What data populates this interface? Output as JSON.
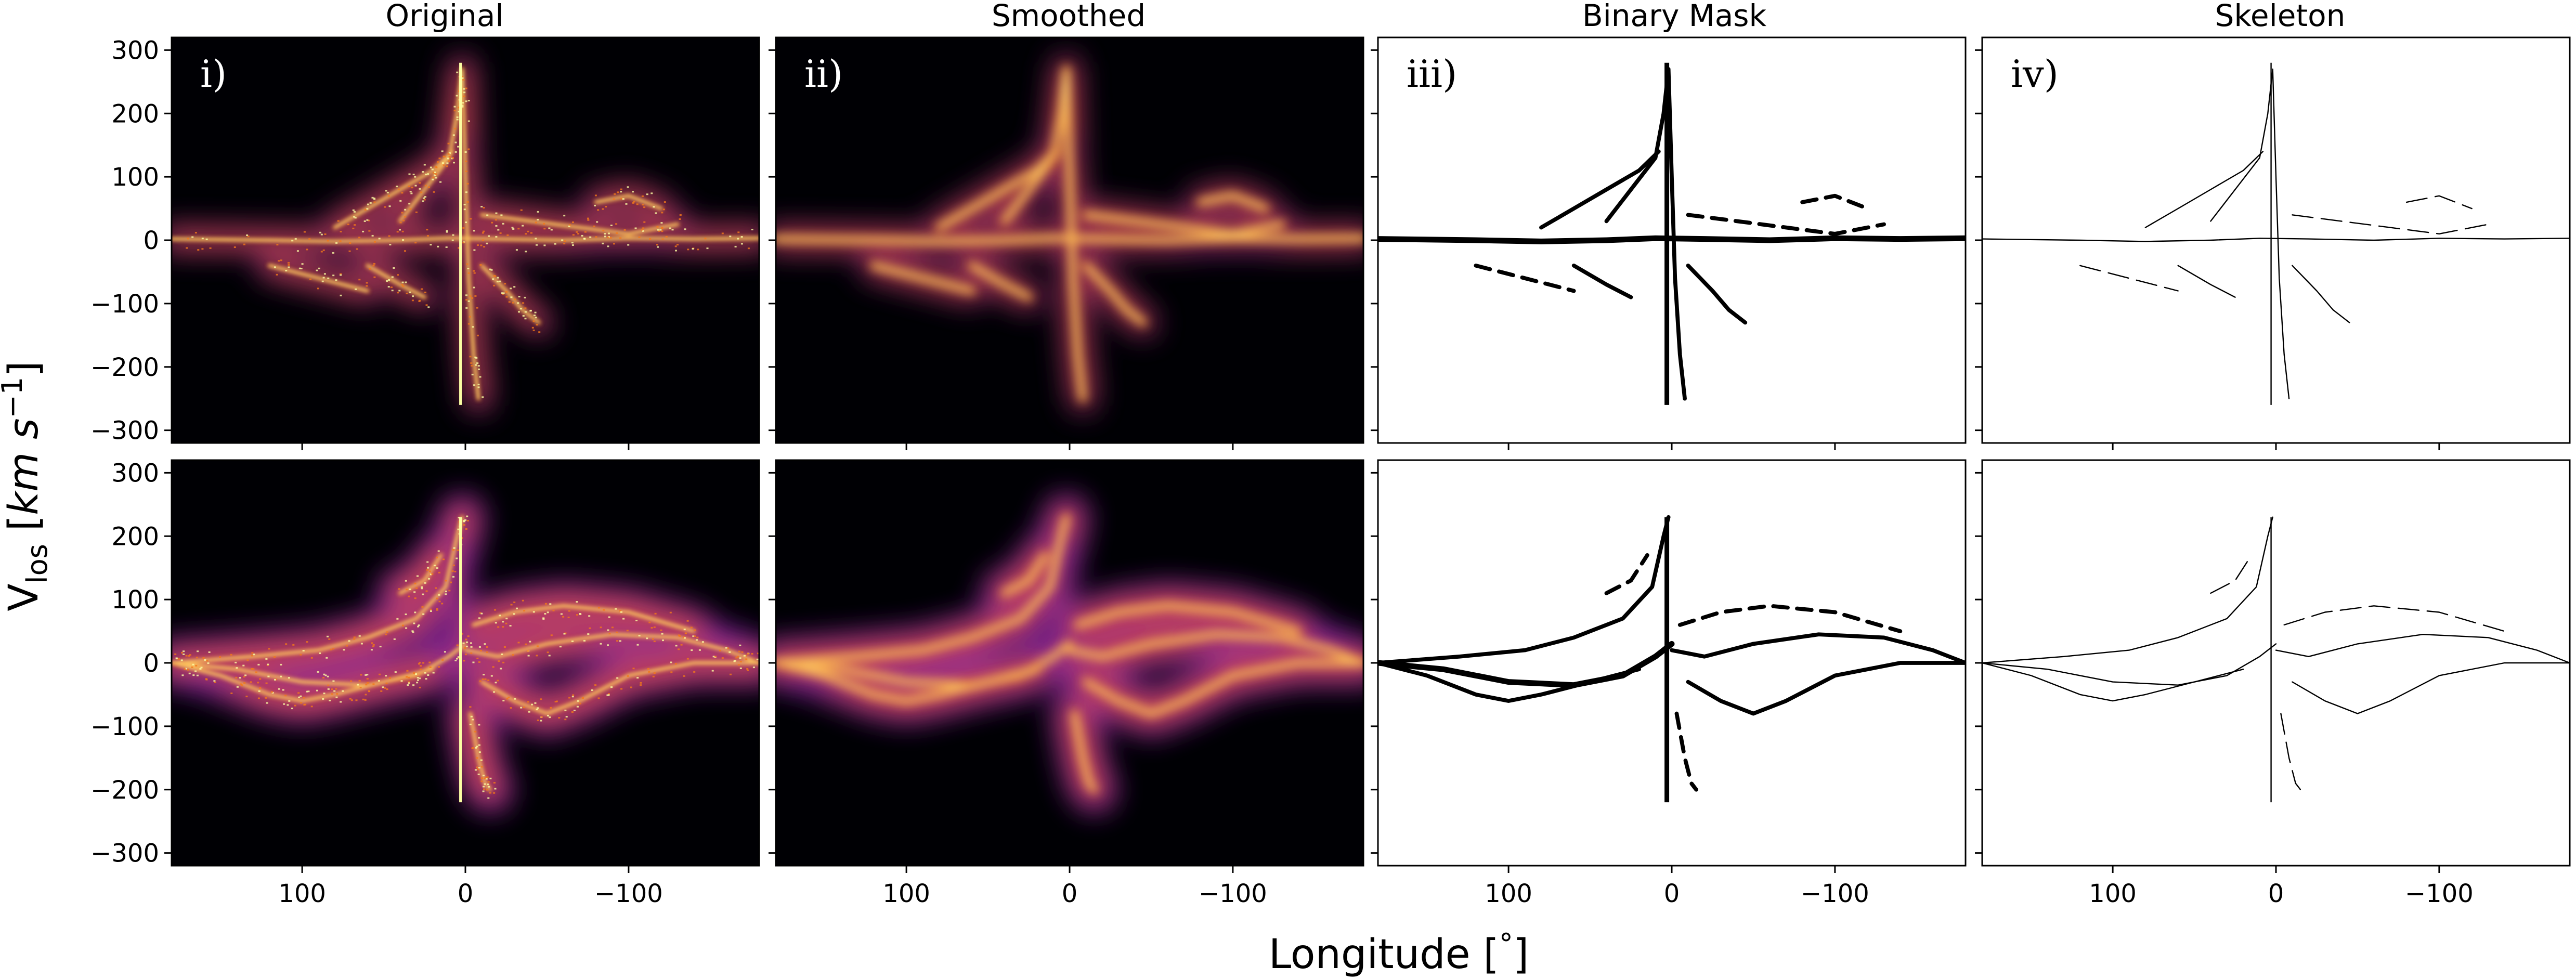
{
  "chart_data": {
    "type": "heatmap",
    "ylabel_main": "V",
    "ylabel_sub": "los",
    "ylabel_units_open": " [",
    "ylabel_unit_km": "km s",
    "ylabel_unit_exp": "−1",
    "ylabel_units_close": "]",
    "xlabel_main": "Longitude [",
    "xlabel_degree": "°",
    "xlabel_close": "]",
    "x_range": [
      180,
      -180
    ],
    "y_range": [
      -320,
      320
    ],
    "x_ticks": [
      100,
      0,
      -100
    ],
    "x_tick_labels": [
      "100",
      "0",
      "−100"
    ],
    "y_ticks": [
      300,
      200,
      100,
      0,
      -100,
      -200,
      -300
    ],
    "y_tick_labels": [
      "300",
      "200",
      "100",
      "0",
      "−100",
      "−200",
      "−300"
    ],
    "columns": [
      {
        "title": "Original",
        "label": "i)",
        "style": "heat-sharp"
      },
      {
        "title": "Smoothed",
        "label": "ii)",
        "style": "heat-smooth"
      },
      {
        "title": "Binary Mask",
        "label": "iii)",
        "style": "mask"
      },
      {
        "title": "Skeleton",
        "label": "iv)",
        "style": "skeleton"
      }
    ],
    "rows": [
      {
        "ridges": [
          [
            [
              180,
              2
            ],
            [
              120,
              0
            ],
            [
              80,
              -2
            ],
            [
              40,
              0
            ],
            [
              10,
              3
            ],
            [
              -20,
              2
            ],
            [
              -60,
              0
            ],
            [
              -100,
              3
            ],
            [
              -140,
              2
            ],
            [
              -180,
              3
            ]
          ],
          [
            [
              40,
              30
            ],
            [
              25,
              80
            ],
            [
              10,
              130
            ],
            [
              5,
              200
            ],
            [
              2,
              270
            ],
            [
              0,
              100
            ],
            [
              -2,
              -60
            ],
            [
              -5,
              -180
            ],
            [
              -8,
              -250
            ]
          ],
          [
            [
              80,
              20
            ],
            [
              60,
              50
            ],
            [
              40,
              80
            ],
            [
              20,
              110
            ],
            [
              8,
              140
            ]
          ],
          [
            [
              60,
              -40
            ],
            [
              40,
              -70
            ],
            [
              25,
              -90
            ]
          ],
          [
            [
              -10,
              -40
            ],
            [
              -25,
              -80
            ],
            [
              -35,
              -110
            ],
            [
              -45,
              -130
            ]
          ],
          [
            [
              -10,
              40
            ],
            [
              -40,
              30
            ],
            [
              -70,
              20
            ],
            [
              -100,
              10
            ],
            [
              -130,
              25
            ]
          ],
          [
            [
              -80,
              60
            ],
            [
              -100,
              70
            ],
            [
              -120,
              50
            ]
          ],
          [
            [
              120,
              -40
            ],
            [
              90,
              -60
            ],
            [
              60,
              -80
            ]
          ]
        ],
        "peak": {
          "x": 3,
          "ytop": 280,
          "ybot": -260
        }
      },
      {
        "ridges": [
          [
            [
              180,
              0
            ],
            [
              140,
              -10
            ],
            [
              100,
              -30
            ],
            [
              60,
              -35
            ],
            [
              30,
              -20
            ],
            [
              10,
              10
            ],
            [
              0,
              30
            ]
          ],
          [
            [
              180,
              0
            ],
            [
              150,
              -20
            ],
            [
              120,
              -50
            ],
            [
              100,
              -60
            ],
            [
              80,
              -50
            ],
            [
              50,
              -30
            ],
            [
              20,
              -10
            ]
          ],
          [
            [
              180,
              0
            ],
            [
              130,
              10
            ],
            [
              90,
              20
            ],
            [
              60,
              40
            ],
            [
              30,
              70
            ],
            [
              12,
              120
            ],
            [
              5,
              200
            ],
            [
              2,
              230
            ]
          ],
          [
            [
              0,
              20
            ],
            [
              -20,
              10
            ],
            [
              -50,
              30
            ],
            [
              -90,
              45
            ],
            [
              -130,
              40
            ],
            [
              -160,
              20
            ],
            [
              -180,
              0
            ]
          ],
          [
            [
              -10,
              -30
            ],
            [
              -30,
              -60
            ],
            [
              -50,
              -80
            ],
            [
              -70,
              -60
            ],
            [
              -100,
              -20
            ],
            [
              -140,
              0
            ],
            [
              -180,
              0
            ]
          ],
          [
            [
              -5,
              60
            ],
            [
              -30,
              80
            ],
            [
              -60,
              90
            ],
            [
              -100,
              80
            ],
            [
              -140,
              50
            ]
          ],
          [
            [
              40,
              110
            ],
            [
              25,
              130
            ],
            [
              15,
              170
            ]
          ],
          [
            [
              -3,
              -80
            ],
            [
              -8,
              -150
            ],
            [
              -12,
              -190
            ],
            [
              -15,
              -200
            ]
          ]
        ],
        "peak": {
          "x": 3,
          "ytop": 230,
          "ybot": -220
        }
      }
    ]
  }
}
